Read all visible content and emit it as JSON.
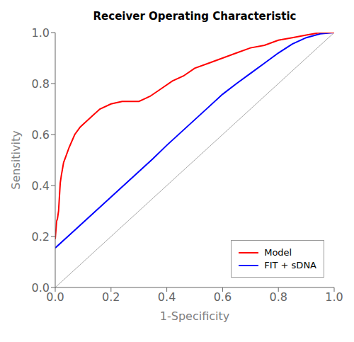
{
  "chart_data": {
    "type": "line",
    "title": "Receiver Operating Characteristic",
    "x_label": "1-Specificity",
    "y_label": "Sensitivity",
    "xlim": [
      0.0,
      1.0
    ],
    "ylim": [
      0.0,
      1.0
    ],
    "xticks": [
      {
        "value": 0.0,
        "label": "0.0"
      },
      {
        "value": 0.2,
        "label": "0.2"
      },
      {
        "value": 0.4,
        "label": "0.4"
      },
      {
        "value": 0.6,
        "label": "0.6"
      },
      {
        "value": 0.8,
        "label": "0.8"
      },
      {
        "value": 1.0,
        "label": "1.0"
      }
    ],
    "yticks": [
      {
        "value": 0.0,
        "label": "0.0"
      },
      {
        "value": 0.2,
        "label": "0.2"
      },
      {
        "value": 0.4,
        "label": "0.4"
      },
      {
        "value": 0.6,
        "label": "0.6"
      },
      {
        "value": 0.8,
        "label": "0.8"
      },
      {
        "value": 1.0,
        "label": "1.0"
      }
    ],
    "grid": false,
    "legend": "lower right",
    "series": [
      {
        "name": "Model",
        "color": "#FF0000",
        "x": [
          0.0,
          0.005,
          0.008,
          0.012,
          0.018,
          0.022,
          0.03,
          0.04,
          0.05,
          0.07,
          0.09,
          0.11,
          0.13,
          0.16,
          0.2,
          0.24,
          0.28,
          0.3,
          0.32,
          0.34,
          0.38,
          0.42,
          0.46,
          0.5,
          0.55,
          0.6,
          0.65,
          0.7,
          0.75,
          0.8,
          0.85,
          0.9,
          0.95,
          1.0
        ],
        "values": [
          0.19,
          0.26,
          0.27,
          0.3,
          0.41,
          0.44,
          0.49,
          0.52,
          0.55,
          0.6,
          0.63,
          0.65,
          0.67,
          0.7,
          0.72,
          0.73,
          0.73,
          0.73,
          0.74,
          0.75,
          0.78,
          0.81,
          0.83,
          0.86,
          0.88,
          0.9,
          0.92,
          0.94,
          0.95,
          0.97,
          0.98,
          0.99,
          1.0,
          1.0
        ]
      },
      {
        "name": "FIT + sDNA",
        "color": "#0000FF",
        "x": [
          0.0,
          0.05,
          0.1,
          0.15,
          0.2,
          0.25,
          0.3,
          0.35,
          0.4,
          0.45,
          0.5,
          0.55,
          0.6,
          0.65,
          0.7,
          0.75,
          0.8,
          0.85,
          0.9,
          0.95,
          1.0
        ],
        "values": [
          0.155,
          0.205,
          0.255,
          0.305,
          0.355,
          0.405,
          0.455,
          0.505,
          0.558,
          0.608,
          0.658,
          0.708,
          0.758,
          0.8,
          0.84,
          0.88,
          0.92,
          0.955,
          0.98,
          0.995,
          1.0
        ]
      }
    ],
    "diagonal": {
      "x": [
        0.0,
        1.0
      ],
      "values": [
        0.0,
        1.0
      ],
      "color": "#AAAAAA"
    }
  }
}
